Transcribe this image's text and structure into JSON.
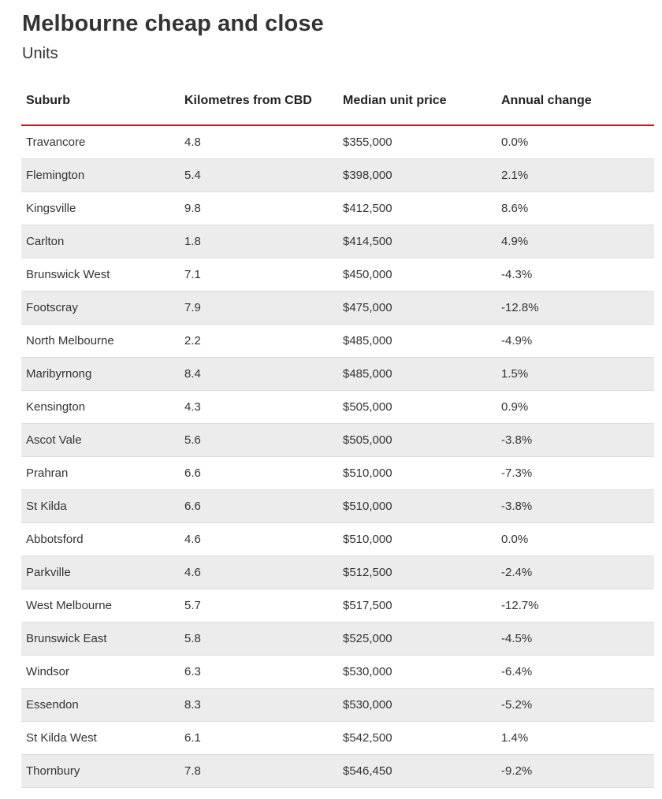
{
  "page": {
    "title": "Melbourne cheap and close",
    "subtitle": "Units"
  },
  "colors": {
    "header_rule": "#d0121b",
    "alt_row": "#ececec",
    "text": "#333333"
  },
  "chart_data": {
    "type": "table",
    "title": "Melbourne cheap and close",
    "subtitle": "Units",
    "columns": [
      "Suburb",
      "Kilometres from CBD",
      "Median unit price",
      "Annual change"
    ],
    "rows": [
      [
        "Travancore",
        "4.8",
        "$355,000",
        "0.0%"
      ],
      [
        "Flemington",
        "5.4",
        "$398,000",
        "2.1%"
      ],
      [
        "Kingsville",
        "9.8",
        "$412,500",
        "8.6%"
      ],
      [
        "Carlton",
        "1.8",
        "$414,500",
        "4.9%"
      ],
      [
        "Brunswick West",
        "7.1",
        "$450,000",
        "-4.3%"
      ],
      [
        "Footscray",
        "7.9",
        "$475,000",
        "-12.8%"
      ],
      [
        "North Melbourne",
        "2.2",
        "$485,000",
        "-4.9%"
      ],
      [
        "Maribyrnong",
        "8.4",
        "$485,000",
        "1.5%"
      ],
      [
        "Kensington",
        "4.3",
        "$505,000",
        "0.9%"
      ],
      [
        "Ascot Vale",
        "5.6",
        "$505,000",
        "-3.8%"
      ],
      [
        "Prahran",
        "6.6",
        "$510,000",
        "-7.3%"
      ],
      [
        "St Kilda",
        "6.6",
        "$510,000",
        "-3.8%"
      ],
      [
        "Abbotsford",
        "4.6",
        "$510,000",
        "0.0%"
      ],
      [
        "Parkville",
        "4.6",
        "$512,500",
        "-2.4%"
      ],
      [
        "West Melbourne",
        "5.7",
        "$517,500",
        "-12.7%"
      ],
      [
        "Brunswick East",
        "5.8",
        "$525,000",
        "-4.5%"
      ],
      [
        "Windsor",
        "6.3",
        "$530,000",
        "-6.4%"
      ],
      [
        "Essendon",
        "8.3",
        "$530,000",
        "-5.2%"
      ],
      [
        "St Kilda West",
        "6.1",
        "$542,500",
        "1.4%"
      ],
      [
        "Thornbury",
        "7.8",
        "$546,450",
        "-9.2%"
      ]
    ]
  }
}
